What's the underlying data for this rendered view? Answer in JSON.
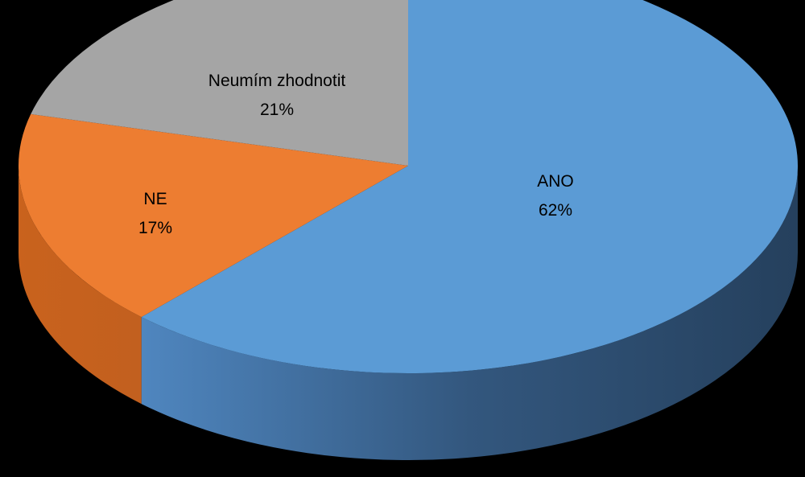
{
  "chart_data": {
    "type": "pie",
    "style": "3d",
    "title": "",
    "legend": "none",
    "slices": [
      {
        "label": "ANO",
        "percent_label": "62%",
        "value": 62,
        "color": "#5B9BD5"
      },
      {
        "label": "NE",
        "percent_label": "17%",
        "value": 17,
        "color": "#ED7D31"
      },
      {
        "label": "Neumím zhodnotit",
        "percent_label": "21%",
        "value": 21,
        "color": "#A5A5A5"
      }
    ]
  },
  "colors": {
    "background": "#000000"
  }
}
